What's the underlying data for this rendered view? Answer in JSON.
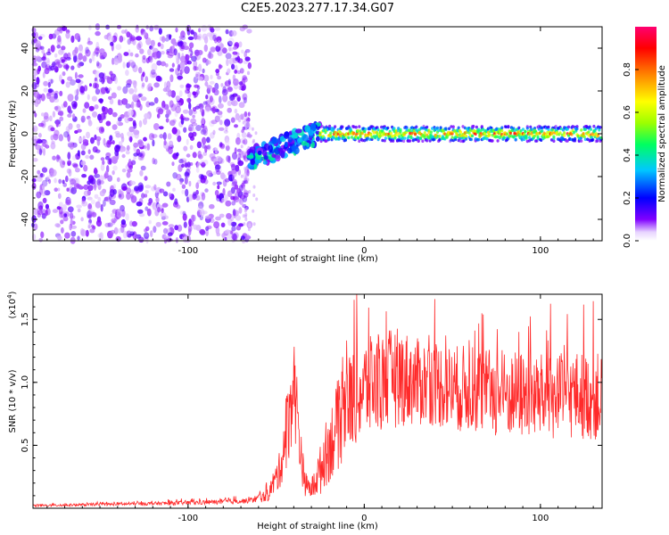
{
  "figure_title": "C2E5.2023.277.17.34.G07",
  "chart_data": [
    {
      "type": "heatmap",
      "xlabel": "Height of straight line (km)",
      "ylabel": "Frequency (Hz)",
      "xlim": [
        -188,
        135
      ],
      "ylim": [
        -50,
        50
      ],
      "x_ticks": [
        -100,
        0,
        100
      ],
      "y_ticks": [
        -40,
        -20,
        0,
        20,
        40
      ],
      "colorbar": {
        "label": "Normalized spectral amplitude",
        "range": [
          0,
          1
        ],
        "ticks": [
          0.0,
          0.2,
          0.4,
          0.6,
          0.8
        ],
        "colormap": [
          "#ffffff",
          "#7a00ff",
          "#0000ff",
          "#00c8ff",
          "#00ff50",
          "#c8ff00",
          "#ffff00",
          "#ff8000",
          "#ff0000",
          "#ff0080"
        ]
      },
      "regions": [
        {
          "x_range": [
            -188,
            -65
          ],
          "description": "broadband noise",
          "freq_range": [
            -50,
            50
          ],
          "amplitude": 0.1
        },
        {
          "x_range": [
            -65,
            -25
          ],
          "description": "rising signal track",
          "freq_start": -12,
          "freq_end": 1,
          "amplitude": 0.35
        },
        {
          "x_range": [
            -25,
            135
          ],
          "description": "steady carrier near 0 Hz",
          "freq": 0,
          "amplitude": 0.95
        }
      ]
    },
    {
      "type": "line",
      "xlabel": "Height of straight line (km)",
      "ylabel": "SNR (10 * v/v)",
      "y_multiplier": "(x10",
      "y_multiplier_exp": "4",
      "xlim": [
        -188,
        135
      ],
      "ylim": [
        0,
        1.7
      ],
      "x_ticks": [
        -100,
        0,
        100
      ],
      "y_ticks": [
        0.5,
        1.0,
        1.5
      ],
      "y_tick_labels": [
        "0.5",
        "1.0",
        "1.5"
      ],
      "series": [
        {
          "color": "#ff2a2a",
          "x": [
            -188,
            -150,
            -110,
            -80,
            -65,
            -55,
            -48,
            -43,
            -40,
            -37,
            -34,
            -30,
            -25,
            -20,
            -15,
            -10,
            -5,
            0,
            10,
            20,
            30,
            40,
            50,
            60,
            70,
            80,
            90,
            100,
            110,
            120,
            135
          ],
          "y": [
            0.02,
            0.03,
            0.04,
            0.05,
            0.06,
            0.1,
            0.3,
            0.7,
            1.0,
            0.6,
            0.2,
            0.15,
            0.3,
            0.5,
            0.65,
            0.8,
            0.9,
            0.95,
            1.0,
            1.05,
            1.0,
            1.0,
            0.95,
            0.95,
            0.92,
            0.9,
            0.9,
            0.88,
            0.88,
            0.9,
            0.88
          ],
          "noise_amplitude": [
            0.01,
            0.01,
            0.015,
            0.02,
            0.02,
            0.05,
            0.15,
            0.35,
            0.4,
            0.3,
            0.1,
            0.08,
            0.2,
            0.3,
            0.35,
            0.4,
            0.4,
            0.4,
            0.4,
            0.4,
            0.35,
            0.35,
            0.35,
            0.35,
            0.35,
            0.35,
            0.35,
            0.35,
            0.35,
            0.35,
            0.35
          ]
        }
      ]
    }
  ]
}
